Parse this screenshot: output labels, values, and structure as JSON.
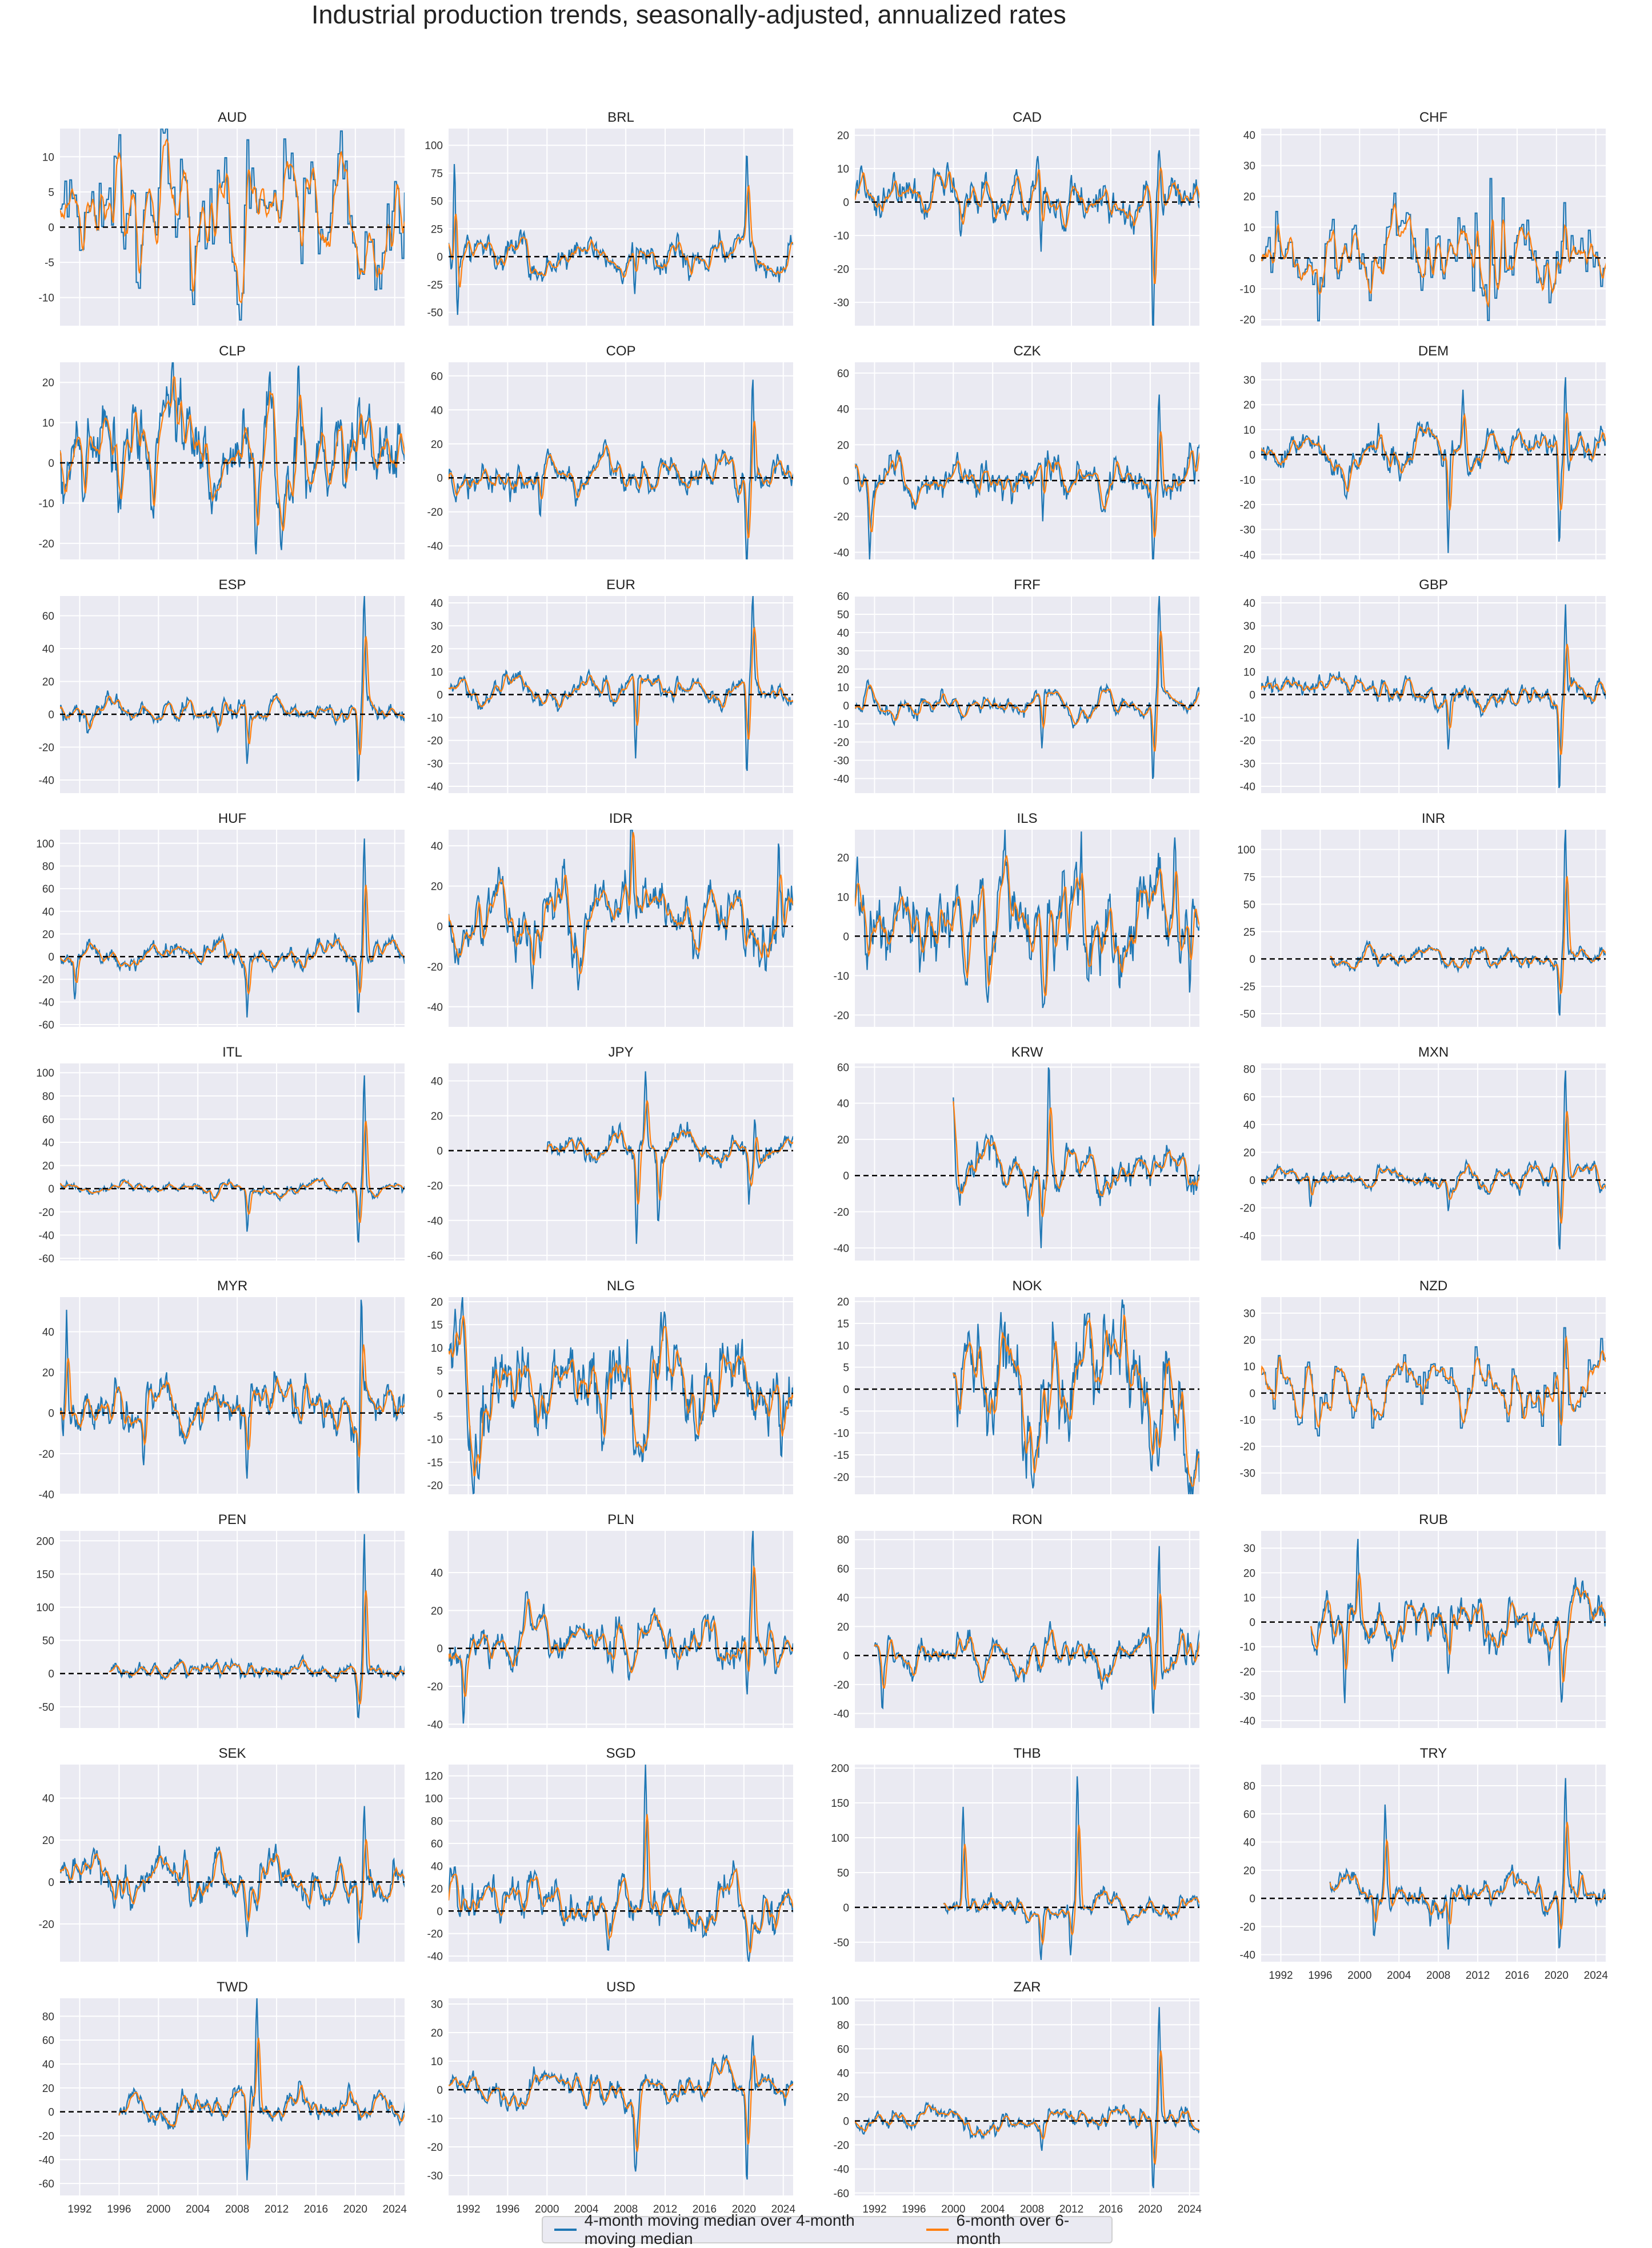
{
  "title": "Industrial production trends, seasonally-adjusted, annualized rates",
  "colors": {
    "series1": "#1f77b4",
    "series2": "#ff7f0e",
    "panel_bg": "#eaeaf2",
    "grid": "#ffffff",
    "zero_line": "#000000"
  },
  "legend": {
    "placement": "bottom-center",
    "items": [
      {
        "label": "4-month moving median over 4-month moving median",
        "color": "#1f77b4"
      },
      {
        "label": "6-month over 6-month",
        "color": "#ff7f0e"
      }
    ]
  },
  "chart_data": [
    {
      "type": "line",
      "title": "AUD",
      "x_range": [
        1990,
        2025
      ],
      "start": 1990,
      "yticks": [
        -10,
        -5,
        0,
        5,
        10
      ],
      "ylim": [
        -14,
        14
      ],
      "vol": 5,
      "events": [],
      "step": true
    },
    {
      "type": "line",
      "title": "BRL",
      "x_range": [
        1990,
        2025
      ],
      "start": 1990,
      "yticks": [
        -50,
        -25,
        0,
        25,
        50,
        75,
        100
      ],
      "ylim": [
        -62,
        115
      ],
      "vol": 9,
      "events": [
        [
          1990.6,
          100
        ],
        [
          1990.9,
          -55
        ],
        [
          2008.9,
          -40
        ],
        [
          2020.3,
          75
        ]
      ]
    },
    {
      "type": "line",
      "title": "CAD",
      "x_range": [
        1990,
        2025
      ],
      "start": 1990,
      "yticks": [
        -30,
        -20,
        -10,
        0,
        10,
        20
      ],
      "ylim": [
        -37,
        22
      ],
      "vol": 4,
      "events": [
        [
          2008.9,
          -20
        ],
        [
          2020.3,
          -36
        ],
        [
          2020.9,
          18
        ]
      ]
    },
    {
      "type": "line",
      "title": "CHF",
      "x_range": [
        1990,
        2025
      ],
      "start": 1990,
      "yticks": [
        -20,
        -10,
        0,
        10,
        20,
        30,
        40
      ],
      "ylim": [
        -22,
        42
      ],
      "vol": 7,
      "events": [
        [
          2013.3,
          40
        ],
        [
          2014.4,
          38
        ],
        [
          2011.5,
          -18
        ]
      ],
      "step": true
    },
    {
      "type": "line",
      "title": "CLP",
      "x_range": [
        1990,
        2025
      ],
      "start": 1990,
      "yticks": [
        -20,
        -10,
        0,
        10,
        20
      ],
      "ylim": [
        -24,
        25
      ],
      "vol": 7,
      "events": [
        [
          1999.5,
          -22
        ],
        [
          2009.9,
          -20
        ],
        [
          2014.2,
          22
        ]
      ]
    },
    {
      "type": "line",
      "title": "COP",
      "x_range": [
        1990,
        2025
      ],
      "start": 1990,
      "yticks": [
        -40,
        -20,
        0,
        20,
        40,
        60
      ],
      "ylim": [
        -48,
        68
      ],
      "vol": 6,
      "events": [
        [
          1999.3,
          -25
        ],
        [
          2020.3,
          -46
        ],
        [
          2020.9,
          62
        ]
      ]
    },
    {
      "type": "line",
      "title": "CZK",
      "x_range": [
        1990,
        2025
      ],
      "start": 1990,
      "yticks": [
        -40,
        -20,
        0,
        20,
        40,
        60
      ],
      "ylim": [
        -44,
        66
      ],
      "vol": 7,
      "events": [
        [
          1991.5,
          -38
        ],
        [
          2009.1,
          -36
        ],
        [
          2020.3,
          -42
        ],
        [
          2020.9,
          62
        ]
      ]
    },
    {
      "type": "line",
      "title": "DEM",
      "x_range": [
        1990,
        2025
      ],
      "start": 1990,
      "yticks": [
        -40,
        -30,
        -20,
        -10,
        0,
        10,
        20,
        30
      ],
      "ylim": [
        -42,
        37
      ],
      "vol": 4,
      "events": [
        [
          2009.0,
          -40
        ],
        [
          2010.5,
          22
        ],
        [
          2020.3,
          -38
        ],
        [
          2020.9,
          34
        ]
      ]
    },
    {
      "type": "line",
      "title": "ESP",
      "x_range": [
        1990,
        2025
      ],
      "start": 1990,
      "yticks": [
        -40,
        -20,
        0,
        20,
        40,
        60
      ],
      "ylim": [
        -48,
        72
      ],
      "vol": 4,
      "events": [
        [
          2009.0,
          -30
        ],
        [
          2020.3,
          -45
        ],
        [
          2020.9,
          68
        ]
      ]
    },
    {
      "type": "line",
      "title": "EUR",
      "x_range": [
        1990,
        2025
      ],
      "start": 1990,
      "yticks": [
        -40,
        -30,
        -20,
        -10,
        0,
        10,
        20,
        30,
        40
      ],
      "ylim": [
        -43,
        43
      ],
      "vol": 3,
      "events": [
        [
          2009.0,
          -35
        ],
        [
          2020.3,
          -40
        ],
        [
          2020.9,
          40
        ]
      ]
    },
    {
      "type": "line",
      "title": "FRF",
      "x_range": [
        1990,
        2025
      ],
      "start": 1990,
      "yticks": [
        -40,
        -30,
        -20,
        -10,
        0,
        10,
        20,
        30,
        40,
        50,
        60
      ],
      "ylim": [
        -48,
        60
      ],
      "vol": 3,
      "events": [
        [
          2009.0,
          -28
        ],
        [
          2020.3,
          -46
        ],
        [
          2020.9,
          56
        ]
      ]
    },
    {
      "type": "line",
      "title": "GBP",
      "x_range": [
        1990,
        2025
      ],
      "start": 1990,
      "yticks": [
        -40,
        -30,
        -20,
        -10,
        0,
        10,
        20,
        30,
        40
      ],
      "ylim": [
        -43,
        43
      ],
      "vol": 3,
      "events": [
        [
          2009.0,
          -22
        ],
        [
          2020.3,
          -38
        ],
        [
          2020.9,
          38
        ]
      ]
    },
    {
      "type": "line",
      "title": "HUF",
      "x_range": [
        1990,
        2025
      ],
      "start": 1990,
      "yticks": [
        -60,
        -40,
        -20,
        0,
        20,
        40,
        60,
        80,
        100
      ],
      "ylim": [
        -62,
        112
      ],
      "vol": 6,
      "events": [
        [
          1991.5,
          -35
        ],
        [
          2009.0,
          -45
        ],
        [
          2020.3,
          -52
        ],
        [
          2020.9,
          105
        ]
      ]
    },
    {
      "type": "line",
      "title": "IDR",
      "x_range": [
        1990,
        2025
      ],
      "start": 1990,
      "yticks": [
        -40,
        -20,
        0,
        20,
        40
      ],
      "ylim": [
        -50,
        48
      ],
      "vol": 10,
      "events": [
        [
          1998.5,
          -45
        ],
        [
          2008.6,
          44
        ],
        [
          2023.5,
          30
        ]
      ]
    },
    {
      "type": "line",
      "title": "ILS",
      "x_range": [
        1990,
        2025
      ],
      "start": 1990,
      "yticks": [
        -20,
        -10,
        0,
        10,
        20
      ],
      "ylim": [
        -23,
        27
      ],
      "vol": 7,
      "events": [
        [
          2013.0,
          25
        ],
        [
          2022.5,
          26
        ],
        [
          2024.0,
          -20
        ]
      ]
    },
    {
      "type": "line",
      "title": "INR",
      "x_range": [
        1990,
        2025
      ],
      "start": 1997,
      "yticks": [
        -50,
        -25,
        0,
        25,
        50,
        75,
        100
      ],
      "ylim": [
        -62,
        118
      ],
      "vol": 5,
      "events": [
        [
          2020.3,
          -55
        ],
        [
          2020.9,
          115
        ]
      ]
    },
    {
      "type": "line",
      "title": "ITL",
      "x_range": [
        1990,
        2025
      ],
      "start": 1990,
      "yticks": [
        -60,
        -40,
        -20,
        0,
        20,
        40,
        60,
        80,
        100
      ],
      "ylim": [
        -62,
        108
      ],
      "vol": 3,
      "events": [
        [
          2009.0,
          -35
        ],
        [
          2020.3,
          -55
        ],
        [
          2020.9,
          103
        ]
      ]
    },
    {
      "type": "line",
      "title": "JPY",
      "x_range": [
        1990,
        2025
      ],
      "start": 2000,
      "yticks": [
        -60,
        -40,
        -20,
        0,
        20,
        40
      ],
      "ylim": [
        -63,
        50
      ],
      "vol": 5,
      "events": [
        [
          2009.1,
          -60
        ],
        [
          2010.0,
          45
        ],
        [
          2011.3,
          -42
        ],
        [
          2020.5,
          -30
        ],
        [
          2021.1,
          28
        ]
      ]
    },
    {
      "type": "line",
      "title": "KRW",
      "x_range": [
        1990,
        2025
      ],
      "start": 2000,
      "yticks": [
        -40,
        -20,
        0,
        20,
        40,
        60
      ],
      "ylim": [
        -47,
        62
      ],
      "vol": 7,
      "events": [
        [
          2000.0,
          42
        ],
        [
          2008.9,
          -45
        ],
        [
          2009.7,
          58
        ]
      ]
    },
    {
      "type": "line",
      "title": "MXN",
      "x_range": [
        1990,
        2025
      ],
      "start": 1990,
      "yticks": [
        -40,
        -20,
        0,
        20,
        40,
        60,
        80
      ],
      "ylim": [
        -58,
        84
      ],
      "vol": 4,
      "events": [
        [
          1995.0,
          -20
        ],
        [
          2009.0,
          -20
        ],
        [
          2020.3,
          -55
        ],
        [
          2020.9,
          78
        ]
      ]
    },
    {
      "type": "line",
      "title": "MYR",
      "x_range": [
        1990,
        2025
      ],
      "start": 1990,
      "yticks": [
        -40,
        -20,
        0,
        20,
        40
      ],
      "ylim": [
        -40,
        57
      ],
      "vol": 7,
      "events": [
        [
          1990.7,
          48
        ],
        [
          1998.5,
          -25
        ],
        [
          2009.0,
          -25
        ],
        [
          2020.3,
          -35
        ],
        [
          2020.6,
          55
        ]
      ]
    },
    {
      "type": "line",
      "title": "NLG",
      "x_range": [
        1990,
        2025
      ],
      "start": 1990,
      "yticks": [
        -20,
        -15,
        -10,
        -5,
        0,
        5,
        10,
        15,
        20
      ],
      "ylim": [
        -22,
        21
      ],
      "vol": 6,
      "events": []
    },
    {
      "type": "line",
      "title": "NOK",
      "x_range": [
        1990,
        2025
      ],
      "start": 2000,
      "yticks": [
        -20,
        -15,
        -10,
        -5,
        0,
        5,
        10,
        15,
        20
      ],
      "ylim": [
        -24,
        21
      ],
      "vol": 8,
      "events": []
    },
    {
      "type": "line",
      "title": "NZD",
      "x_range": [
        1990,
        2025
      ],
      "start": 1990,
      "yticks": [
        -30,
        -20,
        -10,
        0,
        10,
        20,
        30
      ],
      "ylim": [
        -38,
        36
      ],
      "vol": 6,
      "events": [
        [
          2020.3,
          -34
        ],
        [
          2020.8,
          32
        ]
      ],
      "step": true
    },
    {
      "type": "line",
      "title": "PEN",
      "x_range": [
        1990,
        2025
      ],
      "start": 1995,
      "yticks": [
        -50,
        0,
        50,
        100,
        150,
        200
      ],
      "ylim": [
        -82,
        215
      ],
      "vol": 8,
      "events": [
        [
          2020.3,
          -75
        ],
        [
          2020.9,
          205
        ]
      ]
    },
    {
      "type": "line",
      "title": "PLN",
      "x_range": [
        1990,
        2025
      ],
      "start": 1990,
      "yticks": [
        -40,
        -20,
        0,
        20,
        40
      ],
      "ylim": [
        -42,
        62
      ],
      "vol": 7,
      "events": [
        [
          1991.5,
          -35
        ],
        [
          2020.3,
          -40
        ],
        [
          2020.9,
          55
        ]
      ]
    },
    {
      "type": "line",
      "title": "RON",
      "x_range": [
        1990,
        2025
      ],
      "start": 1992,
      "yticks": [
        -40,
        -20,
        0,
        20,
        40,
        60,
        80
      ],
      "ylim": [
        -50,
        86
      ],
      "vol": 7,
      "events": [
        [
          1992.8,
          -38
        ],
        [
          2020.3,
          -45
        ],
        [
          2020.9,
          80
        ]
      ]
    },
    {
      "type": "line",
      "title": "RUB",
      "x_range": [
        1990,
        2025
      ],
      "start": 1995,
      "yticks": [
        -40,
        -30,
        -20,
        -10,
        0,
        10,
        20,
        30
      ],
      "ylim": [
        -43,
        37
      ],
      "vol": 6,
      "events": [
        [
          1998.5,
          -38
        ],
        [
          1999.8,
          32
        ],
        [
          2009.0,
          -32
        ],
        [
          2020.5,
          -22
        ]
      ]
    },
    {
      "type": "line",
      "title": "SEK",
      "x_range": [
        1990,
        2025
      ],
      "start": 1990,
      "yticks": [
        -20,
        0,
        20,
        40
      ],
      "ylim": [
        -38,
        56
      ],
      "vol": 6,
      "events": [
        [
          2009.0,
          -25
        ],
        [
          2020.3,
          -35
        ],
        [
          2020.9,
          51
        ]
      ]
    },
    {
      "type": "line",
      "title": "SGD",
      "x_range": [
        1990,
        2025
      ],
      "start": 1990,
      "yticks": [
        -40,
        -20,
        0,
        20,
        40,
        60,
        80,
        100,
        120
      ],
      "ylim": [
        -45,
        130
      ],
      "vol": 13,
      "events": [
        [
          2010.0,
          125
        ],
        [
          2020.5,
          -30
        ]
      ]
    },
    {
      "type": "line",
      "title": "THB",
      "x_range": [
        1990,
        2025
      ],
      "start": 1999,
      "yticks": [
        -50,
        0,
        50,
        100,
        150,
        200
      ],
      "ylim": [
        -78,
        205
      ],
      "vol": 10,
      "events": [
        [
          2001.0,
          130
        ],
        [
          2008.9,
          -60
        ],
        [
          2011.9,
          -75
        ],
        [
          2012.6,
          190
        ]
      ]
    },
    {
      "type": "line",
      "title": "TRY",
      "x_range": [
        1990,
        2025
      ],
      "start": 1997,
      "yticks": [
        -40,
        -20,
        0,
        20,
        40,
        60,
        80
      ],
      "ylim": [
        -45,
        95
      ],
      "vol": 7,
      "events": [
        [
          2001.5,
          -30
        ],
        [
          2002.6,
          55
        ],
        [
          2009.0,
          -45
        ],
        [
          2020.3,
          -35
        ],
        [
          2020.9,
          90
        ]
      ]
    },
    {
      "type": "line",
      "title": "TWD",
      "x_range": [
        1990,
        2025
      ],
      "start": 1996,
      "yticks": [
        -60,
        -40,
        -20,
        0,
        20,
        40,
        60,
        80
      ],
      "ylim": [
        -70,
        95
      ],
      "vol": 7,
      "events": [
        [
          2009.0,
          -65
        ],
        [
          2010.0,
          88
        ]
      ]
    },
    {
      "type": "line",
      "title": "USD",
      "x_range": [
        1990,
        2025
      ],
      "start": 1990,
      "yticks": [
        -30,
        -20,
        -10,
        0,
        10,
        20,
        30
      ],
      "ylim": [
        -37,
        32
      ],
      "vol": 3,
      "events": [
        [
          2009.0,
          -20
        ],
        [
          2020.3,
          -36
        ],
        [
          2020.9,
          15
        ]
      ]
    },
    {
      "type": "line",
      "title": "ZAR",
      "x_range": [
        1990,
        2025
      ],
      "start": 1990,
      "yticks": [
        -60,
        -40,
        -20,
        0,
        20,
        40,
        60,
        80,
        100
      ],
      "ylim": [
        -62,
        102
      ],
      "vol": 5,
      "events": [
        [
          2009.0,
          -30
        ],
        [
          2020.3,
          -60
        ],
        [
          2020.9,
          95
        ]
      ]
    }
  ],
  "xticks": [
    "1992",
    "1996",
    "2000",
    "2004",
    "2008",
    "2012",
    "2016",
    "2020",
    "2024"
  ]
}
